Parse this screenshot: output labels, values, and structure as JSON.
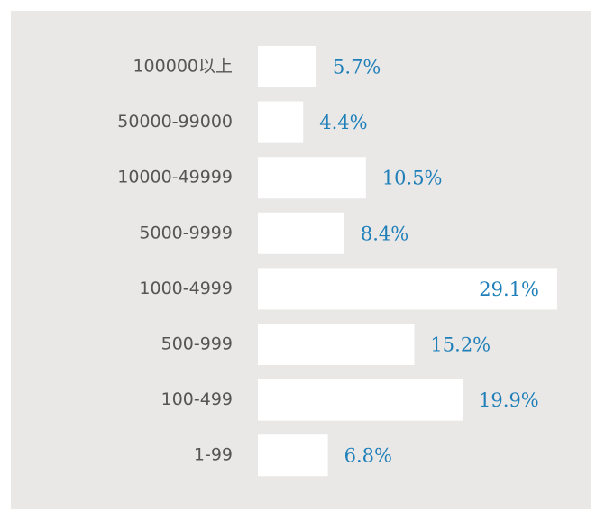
{
  "chart_data": {
    "type": "barh",
    "categories": [
      "100000以上",
      "50000-99000",
      "10000-49999",
      "5000-9999",
      "1000-4999",
      "500-999",
      "100-499",
      "1-99"
    ],
    "values": [
      5.7,
      4.4,
      10.5,
      8.4,
      29.1,
      15.2,
      19.9,
      6.8
    ],
    "value_labels": [
      "5.7%",
      "4.4%",
      "10.5%",
      "8.4%",
      "29.1%",
      "15.2%",
      "19.9%",
      "6.8%"
    ],
    "color": "#ffffff"
  }
}
